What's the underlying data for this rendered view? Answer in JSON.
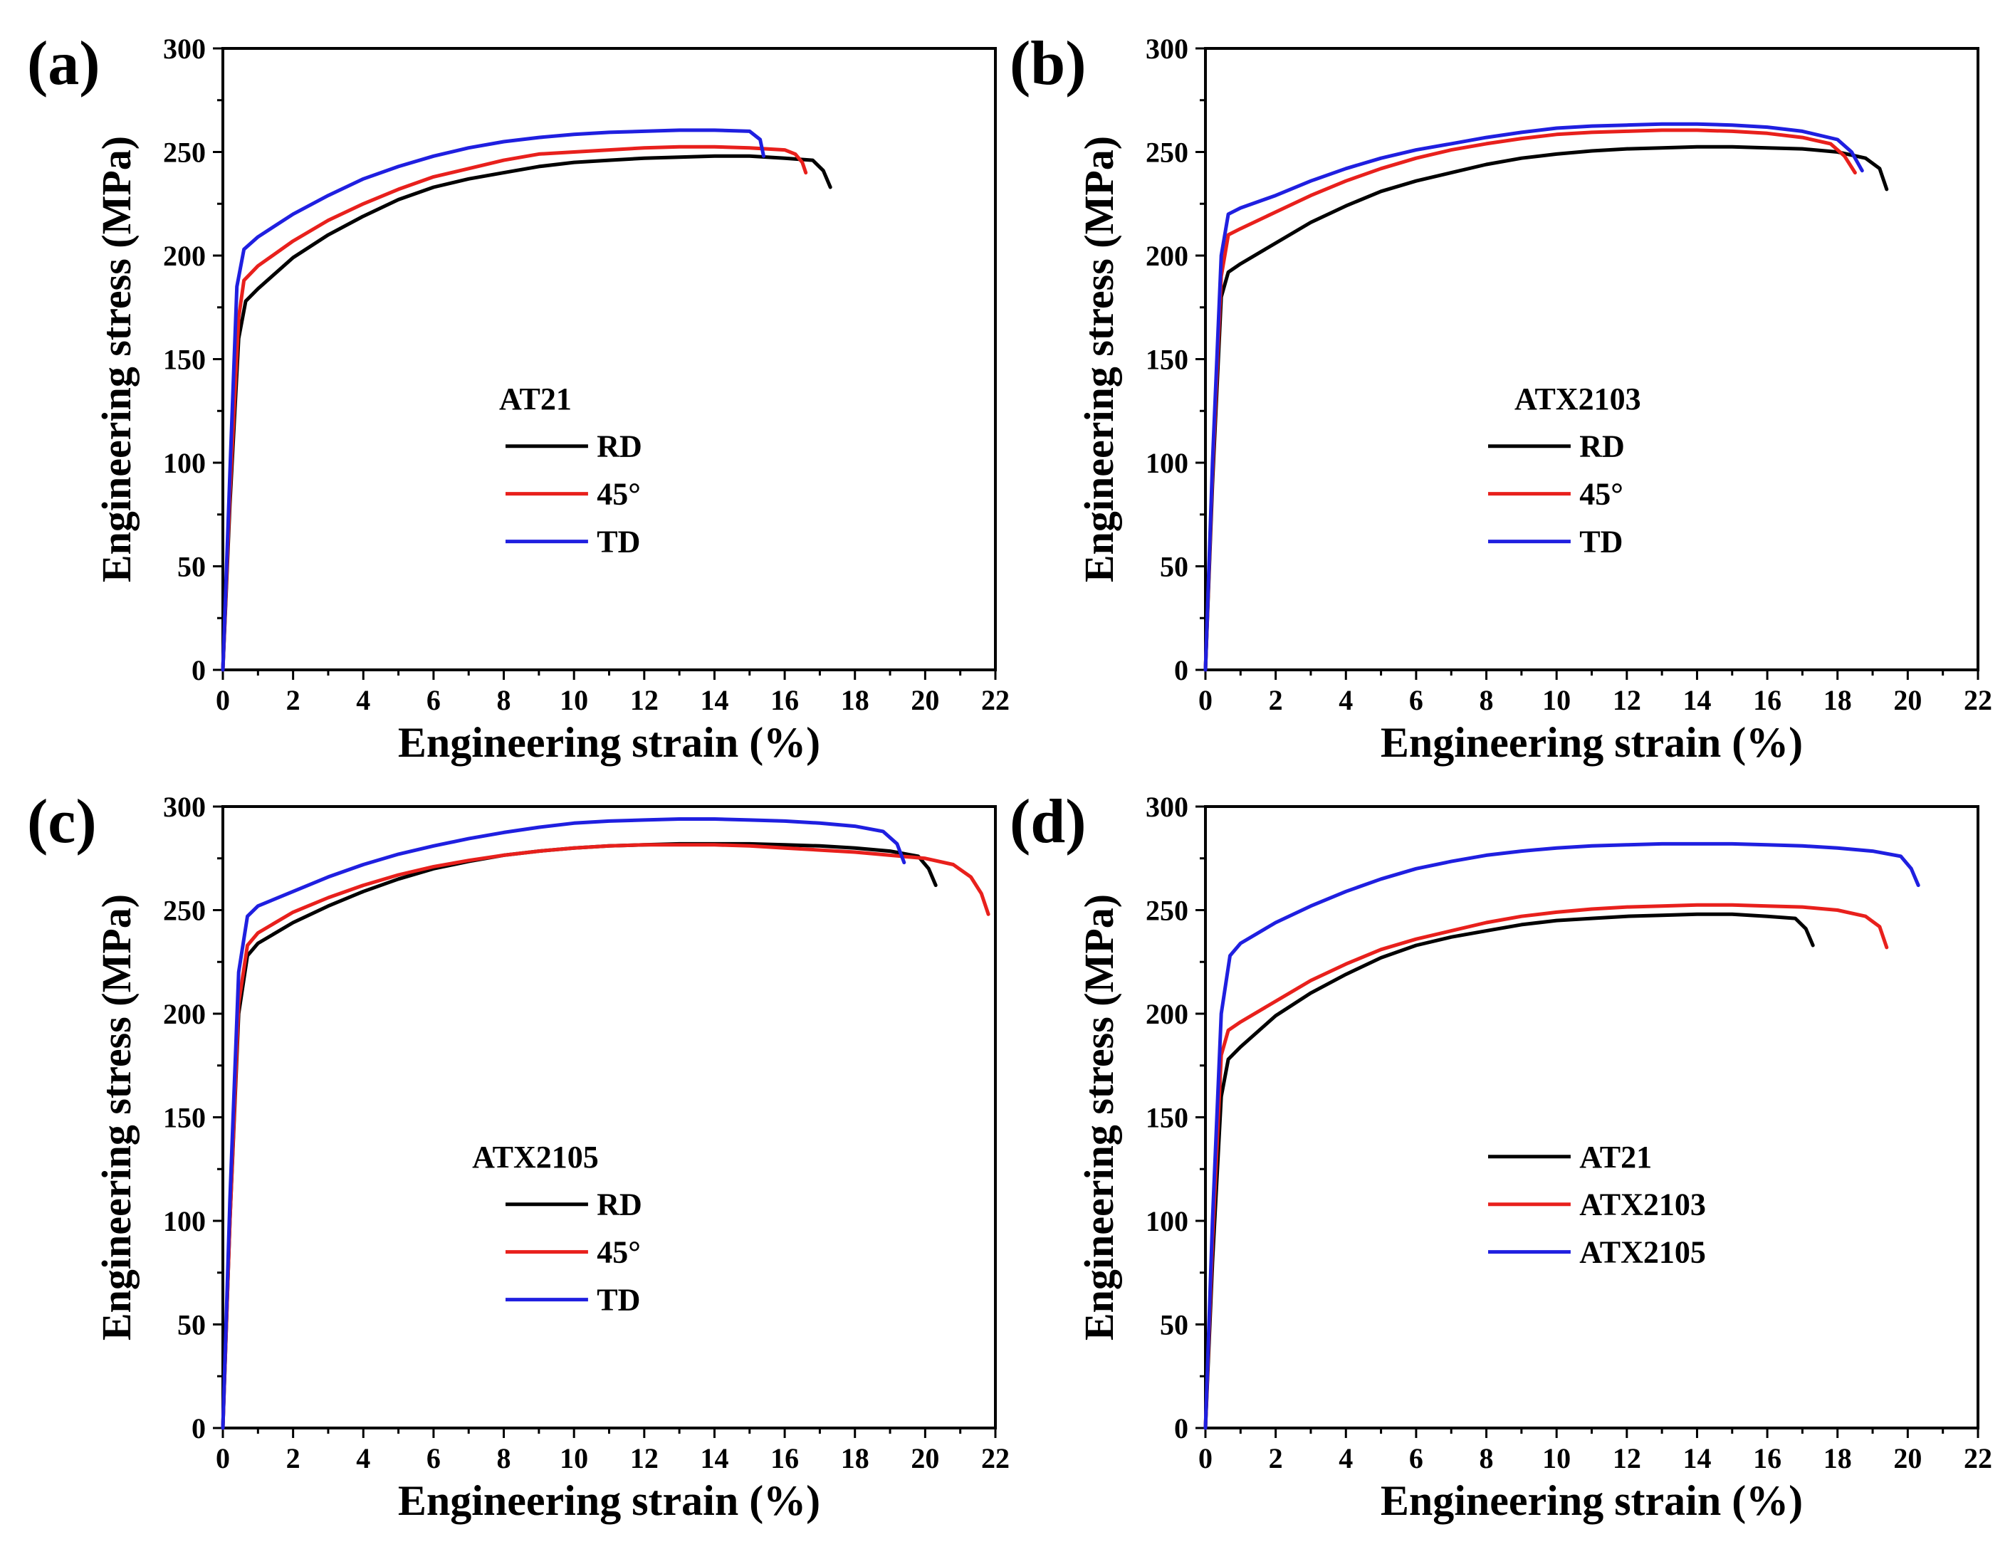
{
  "chart_data": [
    {
      "type": "line",
      "panel_label": "(a)",
      "xlabel": "Engineering strain (%)",
      "ylabel": "Engineering stress (MPa)",
      "xlim": [
        0,
        22
      ],
      "ylim": [
        0,
        300
      ],
      "xticks": [
        0,
        2,
        4,
        6,
        8,
        10,
        12,
        14,
        16,
        18,
        20,
        22
      ],
      "yticks": [
        0,
        50,
        100,
        150,
        200,
        250,
        300
      ],
      "legend_title": "AT21",
      "series": [
        {
          "name": "RD",
          "color": "#000000",
          "x": [
            0,
            0.2,
            0.45,
            0.65,
            1,
            2,
            3,
            4,
            5,
            6,
            7,
            8,
            9,
            10,
            11,
            12,
            13,
            14,
            15,
            16,
            16.8,
            17.1,
            17.3
          ],
          "y": [
            0,
            80,
            160,
            178,
            184,
            199,
            210,
            219,
            227,
            233,
            237,
            240,
            243,
            245,
            246,
            247,
            247.5,
            248,
            248,
            247,
            246,
            241,
            233
          ]
        },
        {
          "name": "45°",
          "color": "#e8201c",
          "x": [
            0,
            0.2,
            0.45,
            0.6,
            1,
            2,
            3,
            4,
            5,
            6,
            7,
            8,
            9,
            10,
            11,
            12,
            13,
            14,
            15,
            16,
            16.3,
            16.5,
            16.6
          ],
          "y": [
            0,
            85,
            170,
            188,
            195,
            207,
            217,
            225,
            232,
            238,
            242,
            246,
            249,
            250,
            251,
            252,
            252.5,
            252.5,
            252,
            251,
            249,
            245,
            240
          ]
        },
        {
          "name": "TD",
          "color": "#1f1fe0",
          "x": [
            0,
            0.2,
            0.4,
            0.6,
            1,
            2,
            3,
            4,
            5,
            6,
            7,
            8,
            9,
            10,
            11,
            12,
            13,
            14,
            15,
            15.3,
            15.4
          ],
          "y": [
            0,
            95,
            185,
            203,
            209,
            220,
            229,
            237,
            243,
            248,
            252,
            255,
            257,
            258.5,
            259.5,
            260,
            260.5,
            260.5,
            260,
            256,
            248
          ]
        }
      ]
    },
    {
      "type": "line",
      "panel_label": "(b)",
      "xlabel": "Engineering strain (%)",
      "ylabel": "Engineering stress (MPa)",
      "xlim": [
        0,
        22
      ],
      "ylim": [
        0,
        300
      ],
      "xticks": [
        0,
        2,
        4,
        6,
        8,
        10,
        12,
        14,
        16,
        18,
        20,
        22
      ],
      "yticks": [
        0,
        50,
        100,
        150,
        200,
        250,
        300
      ],
      "legend_title": "ATX2103",
      "series": [
        {
          "name": "RD",
          "color": "#000000",
          "x": [
            0,
            0.2,
            0.45,
            0.65,
            1,
            2,
            3,
            4,
            5,
            6,
            7,
            8,
            9,
            10,
            11,
            12,
            13,
            14,
            15,
            16,
            17,
            18,
            18.8,
            19.2,
            19.4
          ],
          "y": [
            0,
            90,
            180,
            192,
            196,
            206,
            216,
            224,
            231,
            236,
            240,
            244,
            247,
            249,
            250.5,
            251.5,
            252,
            252.5,
            252.5,
            252,
            251.5,
            250,
            247,
            242,
            232
          ]
        },
        {
          "name": "45°",
          "color": "#e8201c",
          "x": [
            0,
            0.2,
            0.45,
            0.65,
            1,
            2,
            3,
            4,
            5,
            6,
            7,
            8,
            9,
            10,
            11,
            12,
            13,
            14,
            15,
            16,
            17,
            17.8,
            18.2,
            18.5
          ],
          "y": [
            0,
            95,
            190,
            210,
            213,
            221,
            229,
            236,
            242,
            247,
            251,
            254,
            256.5,
            258.5,
            259.5,
            260,
            260.5,
            260.5,
            260,
            259,
            257,
            254,
            248,
            240
          ]
        },
        {
          "name": "TD",
          "color": "#1f1fe0",
          "x": [
            0,
            0.2,
            0.45,
            0.65,
            1,
            2,
            3,
            4,
            5,
            6,
            7,
            8,
            9,
            10,
            11,
            12,
            13,
            14,
            15,
            16,
            17,
            18,
            18.4,
            18.7
          ],
          "y": [
            0,
            100,
            200,
            220,
            223,
            229,
            236,
            242,
            247,
            251,
            254,
            257,
            259.5,
            261.5,
            262.5,
            263,
            263.5,
            263.5,
            263,
            262,
            260,
            256,
            250,
            241
          ]
        }
      ]
    },
    {
      "type": "line",
      "panel_label": "(c)",
      "xlabel": "Engineering strain (%)",
      "ylabel": "Engineering stress (MPa)",
      "xlim": [
        0,
        22
      ],
      "ylim": [
        0,
        300
      ],
      "xticks": [
        0,
        2,
        4,
        6,
        8,
        10,
        12,
        14,
        16,
        18,
        20,
        22
      ],
      "yticks": [
        0,
        50,
        100,
        150,
        200,
        250,
        300
      ],
      "legend_title": "ATX2105",
      "series": [
        {
          "name": "RD",
          "color": "#000000",
          "x": [
            0,
            0.2,
            0.45,
            0.7,
            1,
            2,
            3,
            4,
            5,
            6,
            7,
            8,
            9,
            10,
            11,
            12,
            13,
            14,
            15,
            16,
            17,
            18,
            19,
            19.8,
            20.1,
            20.3
          ],
          "y": [
            0,
            100,
            200,
            228,
            234,
            244,
            252,
            259,
            265,
            270,
            273.5,
            276.5,
            278.5,
            280,
            281,
            281.5,
            282,
            282,
            282,
            281.5,
            281,
            280,
            278.5,
            276,
            270,
            262
          ]
        },
        {
          "name": "45°",
          "color": "#e8201c",
          "x": [
            0,
            0.2,
            0.45,
            0.7,
            1,
            2,
            3,
            4,
            5,
            6,
            7,
            8,
            9,
            10,
            11,
            12,
            13,
            14,
            15,
            16,
            17,
            18,
            19,
            20,
            20.8,
            21.3,
            21.6,
            21.8
          ],
          "y": [
            0,
            100,
            205,
            233,
            239,
            249,
            256,
            262,
            267,
            271,
            274,
            276.5,
            278.5,
            280,
            281,
            281.5,
            281.5,
            281.5,
            281,
            280,
            279,
            278,
            276.5,
            275,
            272,
            266,
            258,
            248
          ]
        },
        {
          "name": "TD",
          "color": "#1f1fe0",
          "x": [
            0,
            0.2,
            0.45,
            0.7,
            1,
            2,
            3,
            4,
            5,
            6,
            7,
            8,
            9,
            10,
            11,
            12,
            13,
            14,
            15,
            16,
            17,
            18,
            18.8,
            19.2,
            19.4
          ],
          "y": [
            0,
            110,
            220,
            247,
            252,
            259,
            266,
            272,
            277,
            281,
            284.5,
            287.5,
            290,
            292,
            293,
            293.5,
            294,
            294,
            293.5,
            293,
            292,
            290.5,
            288,
            282,
            273
          ]
        }
      ]
    },
    {
      "type": "line",
      "panel_label": "(d)",
      "xlabel": "Engineering strain (%)",
      "ylabel": "Engineering stress (MPa)",
      "xlim": [
        0,
        22
      ],
      "ylim": [
        0,
        300
      ],
      "xticks": [
        0,
        2,
        4,
        6,
        8,
        10,
        12,
        14,
        16,
        18,
        20,
        22
      ],
      "yticks": [
        0,
        50,
        100,
        150,
        200,
        250,
        300
      ],
      "legend_title": "",
      "series": [
        {
          "name": "AT21",
          "color": "#000000",
          "x": [
            0,
            0.2,
            0.45,
            0.65,
            1,
            2,
            3,
            4,
            5,
            6,
            7,
            8,
            9,
            10,
            11,
            12,
            13,
            14,
            15,
            16,
            16.8,
            17.1,
            17.3
          ],
          "y": [
            0,
            80,
            160,
            178,
            184,
            199,
            210,
            219,
            227,
            233,
            237,
            240,
            243,
            245,
            246,
            247,
            247.5,
            248,
            248,
            247,
            246,
            241,
            233
          ]
        },
        {
          "name": "ATX2103",
          "color": "#e8201c",
          "x": [
            0,
            0.2,
            0.45,
            0.65,
            1,
            2,
            3,
            4,
            5,
            6,
            7,
            8,
            9,
            10,
            11,
            12,
            13,
            14,
            15,
            16,
            17,
            18,
            18.8,
            19.2,
            19.4
          ],
          "y": [
            0,
            90,
            180,
            192,
            196,
            206,
            216,
            224,
            231,
            236,
            240,
            244,
            247,
            249,
            250.5,
            251.5,
            252,
            252.5,
            252.5,
            252,
            251.5,
            250,
            247,
            242,
            232
          ]
        },
        {
          "name": "ATX2105",
          "color": "#1f1fe0",
          "x": [
            0,
            0.2,
            0.45,
            0.7,
            1,
            2,
            3,
            4,
            5,
            6,
            7,
            8,
            9,
            10,
            11,
            12,
            13,
            14,
            15,
            16,
            17,
            18,
            19,
            19.8,
            20.1,
            20.3
          ],
          "y": [
            0,
            100,
            200,
            228,
            234,
            244,
            252,
            259,
            265,
            270,
            273.5,
            276.5,
            278.5,
            280,
            281,
            281.5,
            282,
            282,
            282,
            281.5,
            281,
            280,
            278.5,
            276,
            270,
            262
          ]
        }
      ]
    }
  ]
}
